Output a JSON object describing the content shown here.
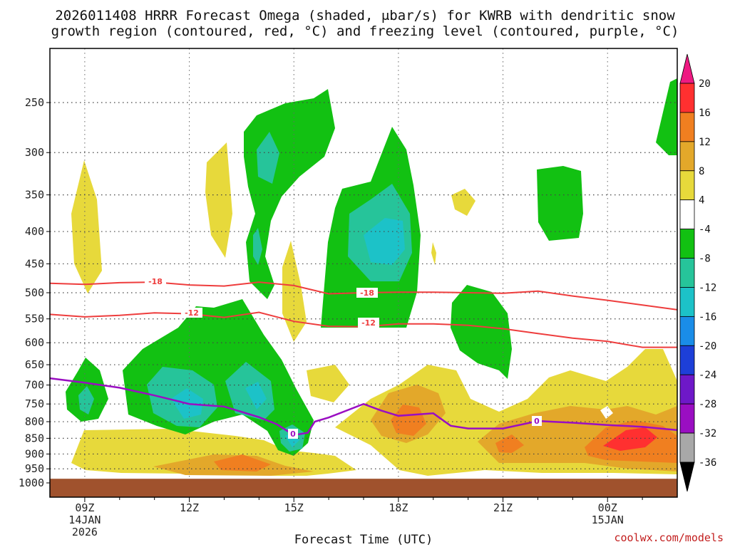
{
  "chart_data": {
    "type": "heatmap",
    "title_line1": "2026011408 HRRR Forecast Omega (shaded, μbar/s) for KWRB with dendritic snow",
    "title_line2": "growth region (contoured, red, °C) and freezing level (contoured, purple, °C)",
    "xlabel": "Forecast Time (UTC)",
    "credit": "coolwx.com/models",
    "x_range_hours": [
      8,
      26
    ],
    "x_ticks": [
      {
        "hour": 9,
        "label": "09Z",
        "sub1": "14JAN",
        "sub2": "2026"
      },
      {
        "hour": 12,
        "label": "12Z"
      },
      {
        "hour": 15,
        "label": "15Z"
      },
      {
        "hour": 18,
        "label": "18Z"
      },
      {
        "hour": 21,
        "label": "21Z"
      },
      {
        "hour": 24,
        "label": "00Z",
        "sub1": "15JAN"
      }
    ],
    "y_ticks_hpa": [
      250,
      300,
      350,
      400,
      450,
      500,
      550,
      600,
      650,
      700,
      750,
      800,
      850,
      900,
      950,
      1000
    ],
    "y_range_hpa": [
      200,
      1000
    ],
    "ground_pressure_hpa": 985,
    "colorbar": {
      "labels": [
        "20",
        "16",
        "12",
        "8",
        "4",
        "-4",
        "-8",
        "-12",
        "-16",
        "-20",
        "-24",
        "-28",
        "-32",
        "-36"
      ],
      "colors": [
        "#ee1a82",
        "#ff3030",
        "#f07f20",
        "#e3a82a",
        "#e7d93b",
        "#ffffff",
        "#12c112",
        "#26c49a",
        "#1cc2c8",
        "#1a8de8",
        "#1d3fd8",
        "#6e18c8",
        "#9a0ec2",
        "#a8a8a8",
        "#000000"
      ]
    },
    "omega_bins": {
      "green": "#12c112",
      "teal": "#26c49a",
      "cyan": "#1cc2c8",
      "yellow": "#e7d93b",
      "gold": "#e3a82a",
      "orange": "#f07f20",
      "red": "#ff3030"
    },
    "contours": {
      "dgz_color": "#ee3d3d",
      "freezing_color": "#9a0ec2",
      "dgz_upper_label": "-18",
      "dgz_lower_label": "-12",
      "freezing_label": "0",
      "dgz_upper": [
        [
          8.0,
          483
        ],
        [
          9.0,
          485
        ],
        [
          10.0,
          482
        ],
        [
          11.0,
          481
        ],
        [
          12.0,
          486
        ],
        [
          13.0,
          488
        ],
        [
          14.0,
          481
        ],
        [
          15.0,
          487
        ],
        [
          16.0,
          502
        ],
        [
          17.0,
          500
        ],
        [
          18.0,
          499
        ],
        [
          19.0,
          499
        ],
        [
          20.0,
          500
        ],
        [
          21.0,
          501
        ],
        [
          22.0,
          497
        ],
        [
          23.0,
          506
        ],
        [
          24.0,
          514
        ],
        [
          25.0,
          523
        ],
        [
          26.0,
          532
        ]
      ],
      "dgz_lower": [
        [
          8.0,
          541
        ],
        [
          9.0,
          546
        ],
        [
          10.0,
          543
        ],
        [
          11.0,
          538
        ],
        [
          12.0,
          540
        ],
        [
          13.0,
          547
        ],
        [
          14.0,
          537
        ],
        [
          15.0,
          555
        ],
        [
          16.0,
          565
        ],
        [
          17.0,
          566
        ],
        [
          18.0,
          560
        ],
        [
          19.0,
          560
        ],
        [
          20.0,
          563
        ],
        [
          21.0,
          570
        ],
        [
          22.0,
          580
        ],
        [
          23.0,
          590
        ],
        [
          24.0,
          597
        ],
        [
          25.0,
          610
        ],
        [
          26.0,
          610
        ]
      ],
      "freezing": [
        [
          8.0,
          683
        ],
        [
          9.0,
          694
        ],
        [
          10.0,
          707
        ],
        [
          11.0,
          727
        ],
        [
          12.0,
          750
        ],
        [
          13.0,
          757
        ],
        [
          14.0,
          787
        ],
        [
          14.5,
          807
        ],
        [
          15.0,
          840
        ],
        [
          15.4,
          833
        ],
        [
          15.6,
          800
        ],
        [
          16.0,
          788
        ],
        [
          17.0,
          750
        ],
        [
          17.5,
          768
        ],
        [
          18.0,
          783
        ],
        [
          19.0,
          776
        ],
        [
          19.5,
          812
        ],
        [
          20.0,
          820
        ],
        [
          21.0,
          820
        ],
        [
          22.0,
          798
        ],
        [
          23.0,
          803
        ],
        [
          24.0,
          810
        ],
        [
          25.0,
          815
        ],
        [
          26.0,
          825
        ]
      ]
    }
  }
}
